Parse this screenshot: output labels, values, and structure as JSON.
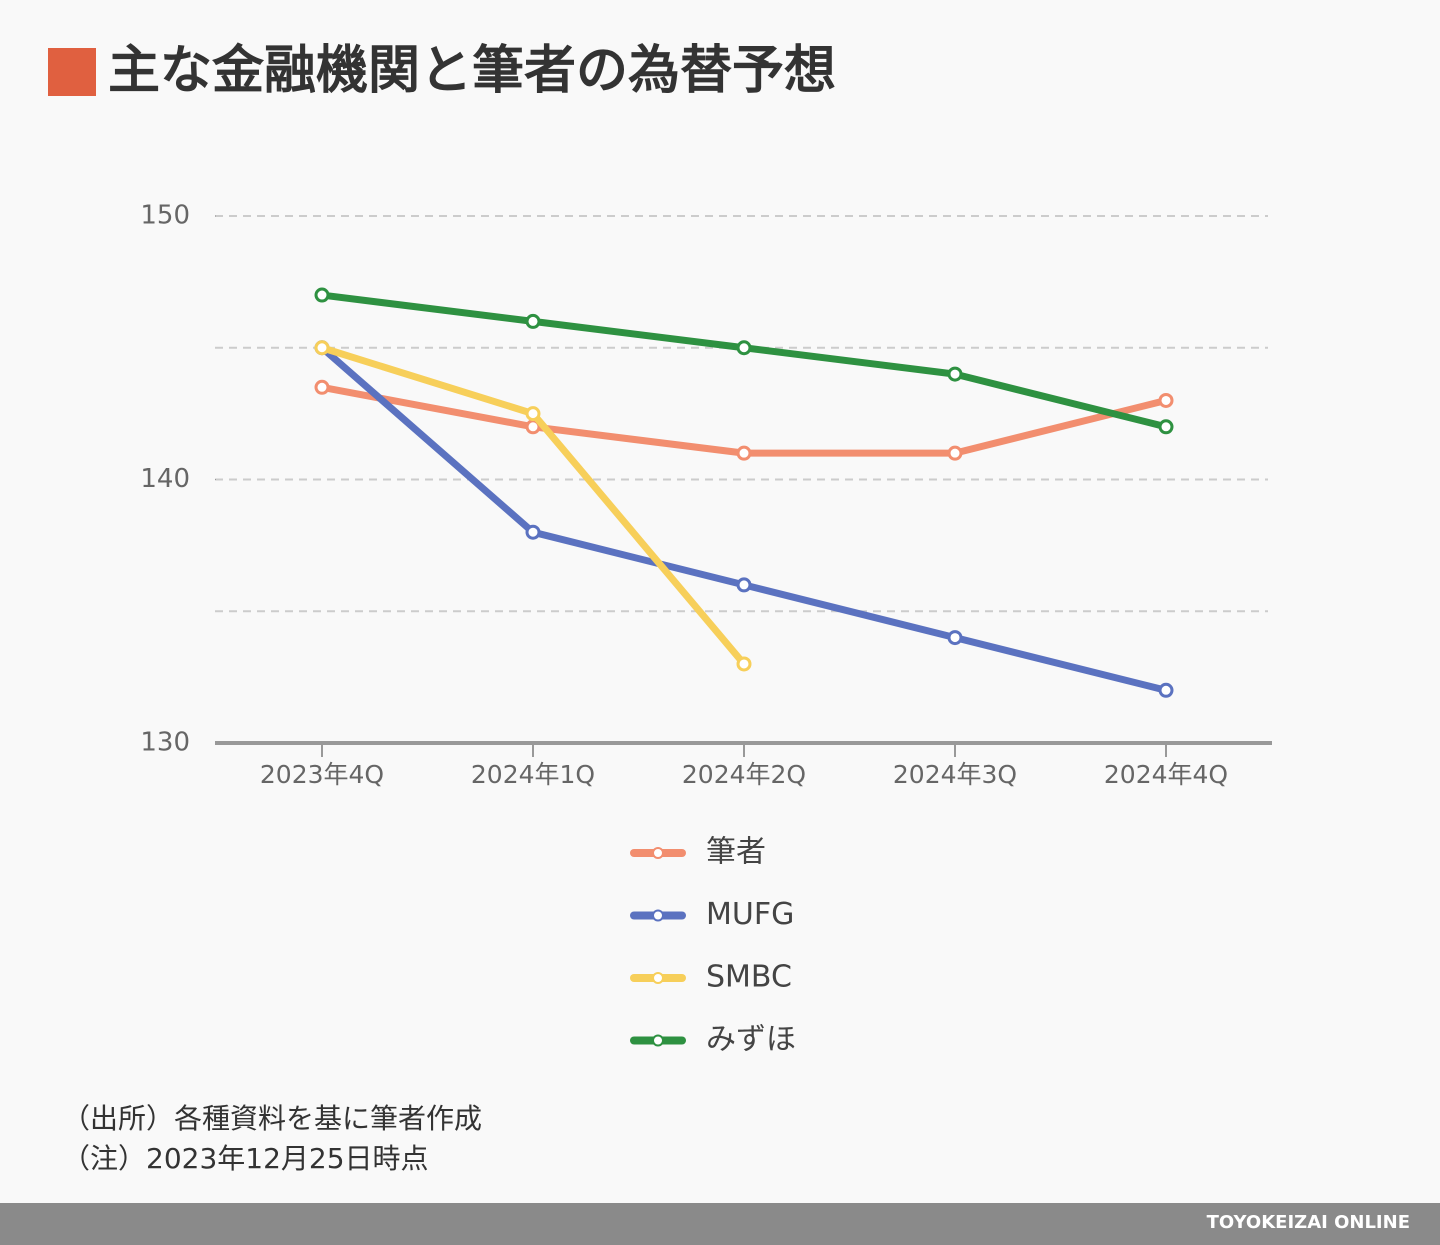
{
  "chart_data": {
    "type": "line",
    "title": "主な金融機関と筆者の為替予想",
    "categories": [
      "2023年4Q",
      "2024年1Q",
      "2024年2Q",
      "2024年3Q",
      "2024年4Q"
    ],
    "series": [
      {
        "name": "筆者",
        "color": "#f28e6f",
        "values": [
          143.5,
          142,
          141,
          141,
          143
        ]
      },
      {
        "name": "MUFG",
        "color": "#5b72c0",
        "values": [
          145,
          138,
          136,
          134,
          132
        ]
      },
      {
        "name": "SMBC",
        "color": "#f7cf5a",
        "values": [
          145,
          142.5,
          133,
          null,
          null
        ]
      },
      {
        "name": "みずほ",
        "color": "#2e9141",
        "values": [
          147,
          146,
          145,
          144,
          142
        ]
      }
    ],
    "ylim": [
      130,
      150
    ],
    "yticks": [
      130,
      140,
      150
    ],
    "grid_lines": [
      135,
      140,
      145,
      150
    ],
    "notes": [
      "（出所）各種資料を基に筆者作成",
      "（注）2023年12月25日時点"
    ],
    "footer": "TOYOKEIZAI ONLINE"
  }
}
